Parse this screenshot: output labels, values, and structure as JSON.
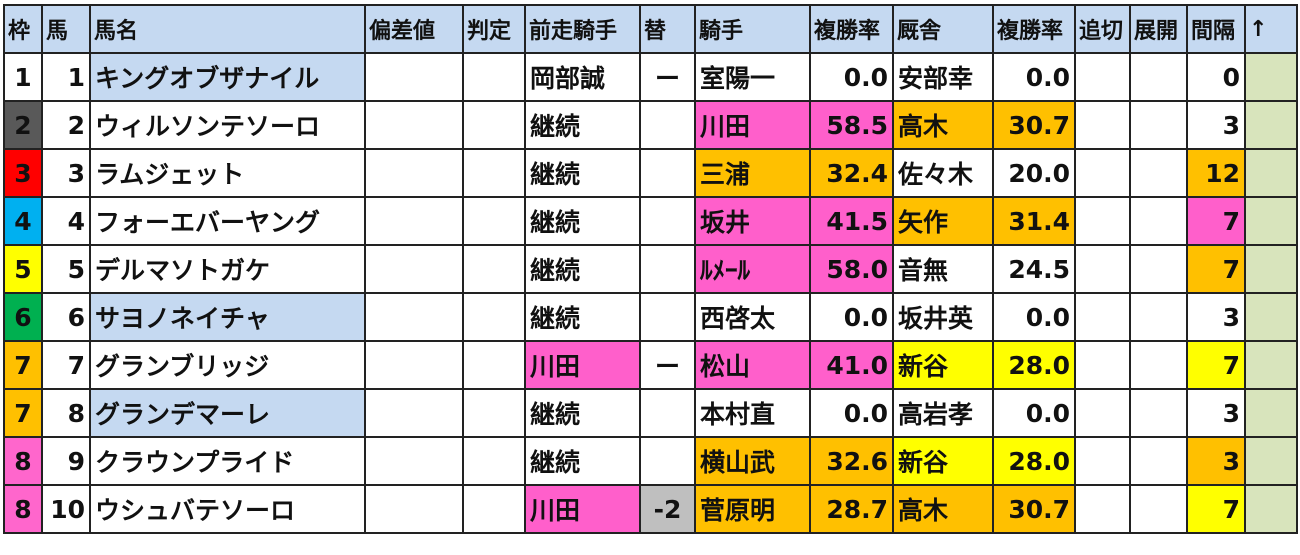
{
  "headers": [
    "枠",
    "馬",
    "馬名",
    "偏差値",
    "判定",
    "前走騎手",
    "替",
    "騎手",
    "複勝率",
    "厩舎",
    "複勝率",
    "追切",
    "展開",
    "間隔",
    "↑"
  ],
  "colors": {
    "frame": {
      "1": "#ffffff",
      "2": "#595959",
      "3": "#ff0000",
      "4": "#00b0f0",
      "5": "#ffff00",
      "6": "#00b050",
      "7": "#ffc000",
      "8": "#ff66cc"
    },
    "pink": "#ff5fcb",
    "orange": "#ffc000",
    "yellow": "#ffff00",
    "highlight": "#c5d9f1"
  },
  "rows": [
    {
      "waku": "1",
      "uma": "1",
      "name": "キングオブザナイル",
      "name_hl": true,
      "prev": "岡部誠",
      "prev_c": "",
      "kae": "ー",
      "kae_c": "",
      "jockey": "室陽一",
      "j_rate": "0.0",
      "j_c": "",
      "trainer": "安部幸",
      "t_rate": "0.0",
      "t_c": "",
      "interval": "0",
      "i_c": ""
    },
    {
      "waku": "2",
      "uma": "2",
      "name": "ウィルソンテソーロ",
      "name_hl": false,
      "prev": "継続",
      "prev_c": "",
      "kae": "",
      "kae_c": "",
      "jockey": "川田",
      "j_rate": "58.5",
      "j_c": "pink",
      "trainer": "高木",
      "t_rate": "30.7",
      "t_c": "orange",
      "interval": "3",
      "i_c": ""
    },
    {
      "waku": "3",
      "uma": "3",
      "name": "ラムジェット",
      "name_hl": false,
      "prev": "継続",
      "prev_c": "",
      "kae": "",
      "kae_c": "",
      "jockey": "三浦",
      "j_rate": "32.4",
      "j_c": "orange",
      "trainer": "佐々木",
      "t_rate": "20.0",
      "t_c": "",
      "interval": "12",
      "i_c": "orange"
    },
    {
      "waku": "4",
      "uma": "4",
      "name": "フォーエバーヤング",
      "name_hl": false,
      "prev": "継続",
      "prev_c": "",
      "kae": "",
      "kae_c": "",
      "jockey": "坂井",
      "j_rate": "41.5",
      "j_c": "pink",
      "trainer": "矢作",
      "t_rate": "31.4",
      "t_c": "orange",
      "interval": "7",
      "i_c": "pink"
    },
    {
      "waku": "5",
      "uma": "5",
      "name": "デルマソトガケ",
      "name_hl": false,
      "prev": "継続",
      "prev_c": "",
      "kae": "",
      "kae_c": "",
      "jockey": "ﾙﾒｰﾙ",
      "j_rate": "58.0",
      "j_c": "pink",
      "trainer": "音無",
      "t_rate": "24.5",
      "t_c": "",
      "interval": "7",
      "i_c": "orange"
    },
    {
      "waku": "6",
      "uma": "6",
      "name": "サヨノネイチャ",
      "name_hl": true,
      "prev": "継続",
      "prev_c": "",
      "kae": "",
      "kae_c": "",
      "jockey": "西啓太",
      "j_rate": "0.0",
      "j_c": "",
      "trainer": "坂井英",
      "t_rate": "0.0",
      "t_c": "",
      "interval": "3",
      "i_c": ""
    },
    {
      "waku": "7",
      "uma": "7",
      "name": "グランブリッジ",
      "name_hl": false,
      "prev": "川田",
      "prev_c": "pink",
      "kae": "ー",
      "kae_c": "",
      "jockey": "松山",
      "j_rate": "41.0",
      "j_c": "pink",
      "trainer": "新谷",
      "t_rate": "28.0",
      "t_c": "yellow",
      "interval": "7",
      "i_c": "yellow"
    },
    {
      "waku": "7",
      "uma": "8",
      "name": "グランデマーレ",
      "name_hl": true,
      "prev": "継続",
      "prev_c": "",
      "kae": "",
      "kae_c": "",
      "jockey": "本村直",
      "j_rate": "0.0",
      "j_c": "",
      "trainer": "高岩孝",
      "t_rate": "0.0",
      "t_c": "",
      "interval": "3",
      "i_c": ""
    },
    {
      "waku": "8",
      "uma": "9",
      "name": "クラウンプライド",
      "name_hl": false,
      "prev": "継続",
      "prev_c": "",
      "kae": "",
      "kae_c": "",
      "jockey": "横山武",
      "j_rate": "32.6",
      "j_c": "orange",
      "trainer": "新谷",
      "t_rate": "28.0",
      "t_c": "yellow",
      "interval": "3",
      "i_c": "orange"
    },
    {
      "waku": "8",
      "uma": "10",
      "name": "ウシュバテソーロ",
      "name_hl": false,
      "prev": "川田",
      "prev_c": "pink",
      "kae": "-2",
      "kae_c": "gray",
      "jockey": "菅原明",
      "j_rate": "28.7",
      "j_c": "orange",
      "trainer": "高木",
      "t_rate": "30.7",
      "t_c": "orange",
      "interval": "7",
      "i_c": "yellow"
    }
  ]
}
